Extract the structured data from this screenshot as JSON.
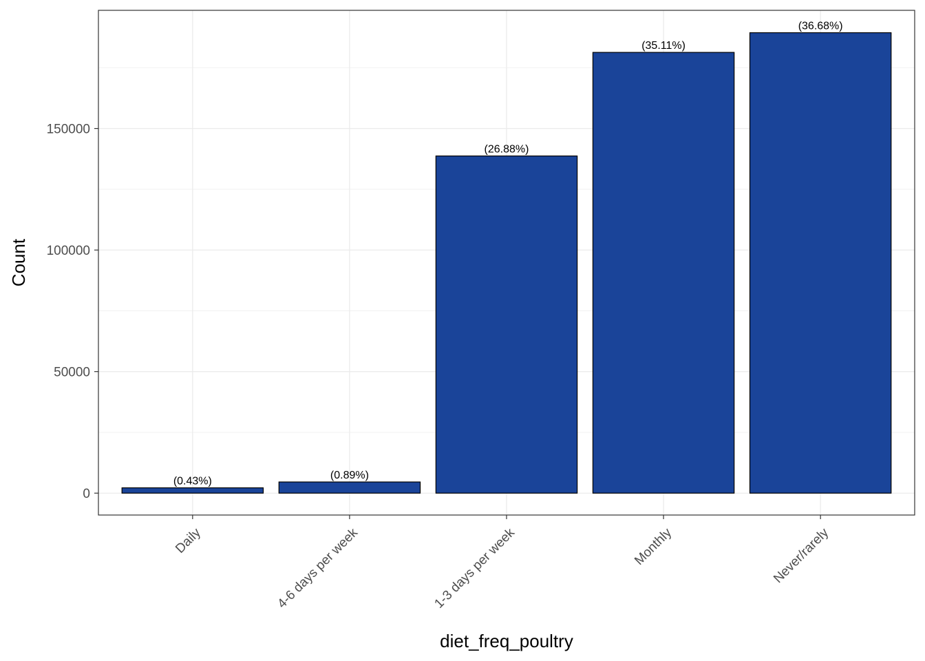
{
  "chart_data": {
    "type": "bar",
    "title": "",
    "xlabel": "diet_freq_poultry",
    "ylabel": "Count",
    "categories": [
      "Daily",
      "4-6 days per week",
      "1-3 days per week",
      "Monthly",
      "Never/rarely"
    ],
    "values": [
      2200,
      4600,
      138700,
      181300,
      189400
    ],
    "labels": [
      "(0.43%)",
      "(0.89%)",
      "(26.88%)",
      "(35.11%)",
      "(36.68%)"
    ],
    "ylim": [
      -9000,
      198600
    ],
    "yticks": [
      0,
      50000,
      100000,
      150000
    ],
    "ytick_labels": [
      "0",
      "50000",
      "100000",
      "150000"
    ],
    "grid": true,
    "legend": "none",
    "colors": {
      "bar_fill": "#1a4499",
      "bar_stroke": "#000000",
      "grid_major": "#ebebeb",
      "grid_minor": "#f2f2f2",
      "panel_border": "#333333"
    }
  }
}
